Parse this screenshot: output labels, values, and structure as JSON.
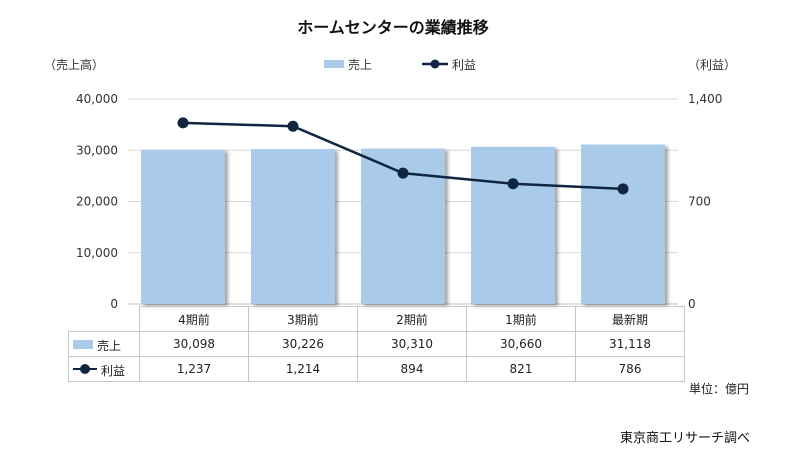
{
  "chart_data": {
    "type": "bar",
    "title": "ホームセンターの業績推移",
    "categories": [
      "4期前",
      "3期前",
      "2期前",
      "1期前",
      "最新期"
    ],
    "series": [
      {
        "name": "売上",
        "type": "bar",
        "axis": "left",
        "values": [
          30098,
          30226,
          30310,
          30660,
          31118
        ],
        "color": "#a9cbe9"
      },
      {
        "name": "利益",
        "type": "line",
        "axis": "right",
        "values": [
          1237,
          1214,
          894,
          821,
          786
        ],
        "color": "#0f2540"
      }
    ],
    "y_left": {
      "label": "（売上高）",
      "min": 0,
      "max": 40000,
      "ticks": [
        "0",
        "10,000",
        "20,000",
        "30,000",
        "40,000"
      ]
    },
    "y_right": {
      "label": "（利益）",
      "min": 0,
      "max": 1400,
      "ticks": [
        "0",
        "700",
        "1,400"
      ]
    },
    "grid": true,
    "legend_position": "top-center"
  },
  "table": {
    "headers": [
      "4期前",
      "3期前",
      "2期前",
      "1期前",
      "最新期"
    ],
    "rows": [
      {
        "label": "売上",
        "cells": [
          "30,098",
          "30,226",
          "30,310",
          "30,660",
          "31,118"
        ]
      },
      {
        "label": "利益",
        "cells": [
          "1,237",
          "1,214",
          "894",
          "821",
          "786"
        ]
      }
    ]
  },
  "unit_note": "単位：億円",
  "source": "東京商工リサーチ調べ"
}
